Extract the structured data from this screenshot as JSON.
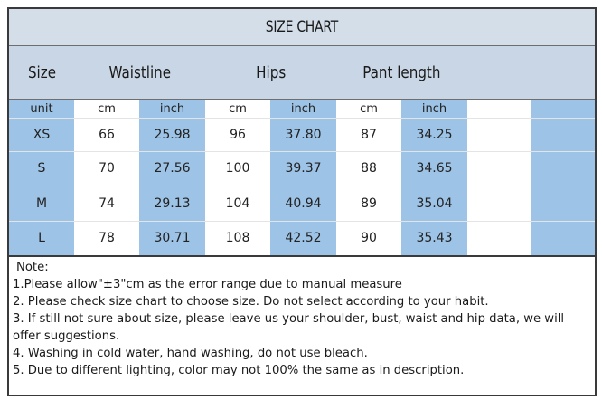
{
  "title": "SIZE CHART",
  "headers": {
    "size": "Size",
    "waistline": "Waistline",
    "hips": "Hips",
    "pant_length": "Pant length"
  },
  "units": [
    "unit",
    "cm",
    "inch",
    "cm",
    "inch",
    "cm",
    "inch"
  ],
  "rows": [
    [
      "XS",
      "66",
      "25.98",
      "96",
      "37.80",
      "87",
      "34.25"
    ],
    [
      "S",
      "70",
      "27.56",
      "100",
      "39.37",
      "88",
      "34.65"
    ],
    [
      "M",
      "74",
      "29.13",
      "104",
      "40.94",
      "89",
      "35.04"
    ],
    [
      "L",
      "78",
      "30.71",
      "108",
      "42.52",
      "90",
      "35.43"
    ]
  ],
  "notes": {
    "heading": "Note:",
    "items": [
      "1.Please allow\"±3\"cm as the error range due to manual measure",
      "2. Please check size chart to choose size. Do not select according to your habit.",
      "3. If still not sure about size, please leave us your shoulder, bust, waist and hip data, we will offer suggestions.",
      "4. Washing in cold water, hand washing, do not use bleach.",
      "5. Due to different lighting, color may not 100% the same as in description."
    ]
  },
  "colors": {
    "blue_column": "#9dc3e6",
    "header_band": "#c9d6e5",
    "title_band": "#d3dee9"
  }
}
